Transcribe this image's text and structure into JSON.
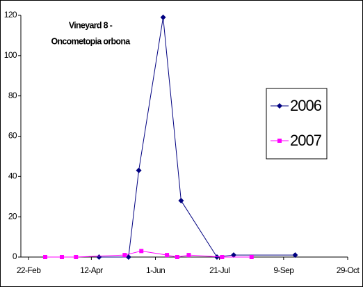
{
  "chart_data": {
    "type": "line",
    "title": [
      "Vineyard 8 -",
      "Oncometopia orbona"
    ],
    "series": [
      {
        "name": "2006",
        "color": "#000080",
        "marker": "diamond",
        "x": [
          "04-18",
          "05-11",
          "05-19",
          "06-07",
          "06-21",
          "07-19",
          "08-01",
          "09-18"
        ],
        "values": [
          0,
          0,
          43,
          119,
          28,
          0,
          1,
          1
        ]
      },
      {
        "name": "2007",
        "color": "#ff00ff",
        "marker": "square",
        "x": [
          "03-07",
          "03-20",
          "03-31",
          "05-08",
          "05-21",
          "06-10",
          "06-18",
          "06-27",
          "07-23",
          "08-15"
        ],
        "values": [
          0,
          0,
          0,
          1,
          3,
          1,
          0,
          1,
          0,
          0
        ]
      }
    ],
    "xlim": [
      "02-16",
      "10-29"
    ],
    "xticks": [
      {
        "value": "02-22",
        "label": "22-Feb"
      },
      {
        "value": "04-12",
        "label": "12-Apr"
      },
      {
        "value": "06-01",
        "label": "1-Jun"
      },
      {
        "value": "07-21",
        "label": "21-Jul"
      },
      {
        "value": "09-09",
        "label": "9-Sep"
      },
      {
        "value": "10-29",
        "label": "29-Oct"
      }
    ],
    "ylim": [
      0,
      120
    ],
    "yticks": [
      0,
      20,
      40,
      60,
      80,
      100,
      120
    ],
    "grid": false,
    "legend": "right"
  }
}
